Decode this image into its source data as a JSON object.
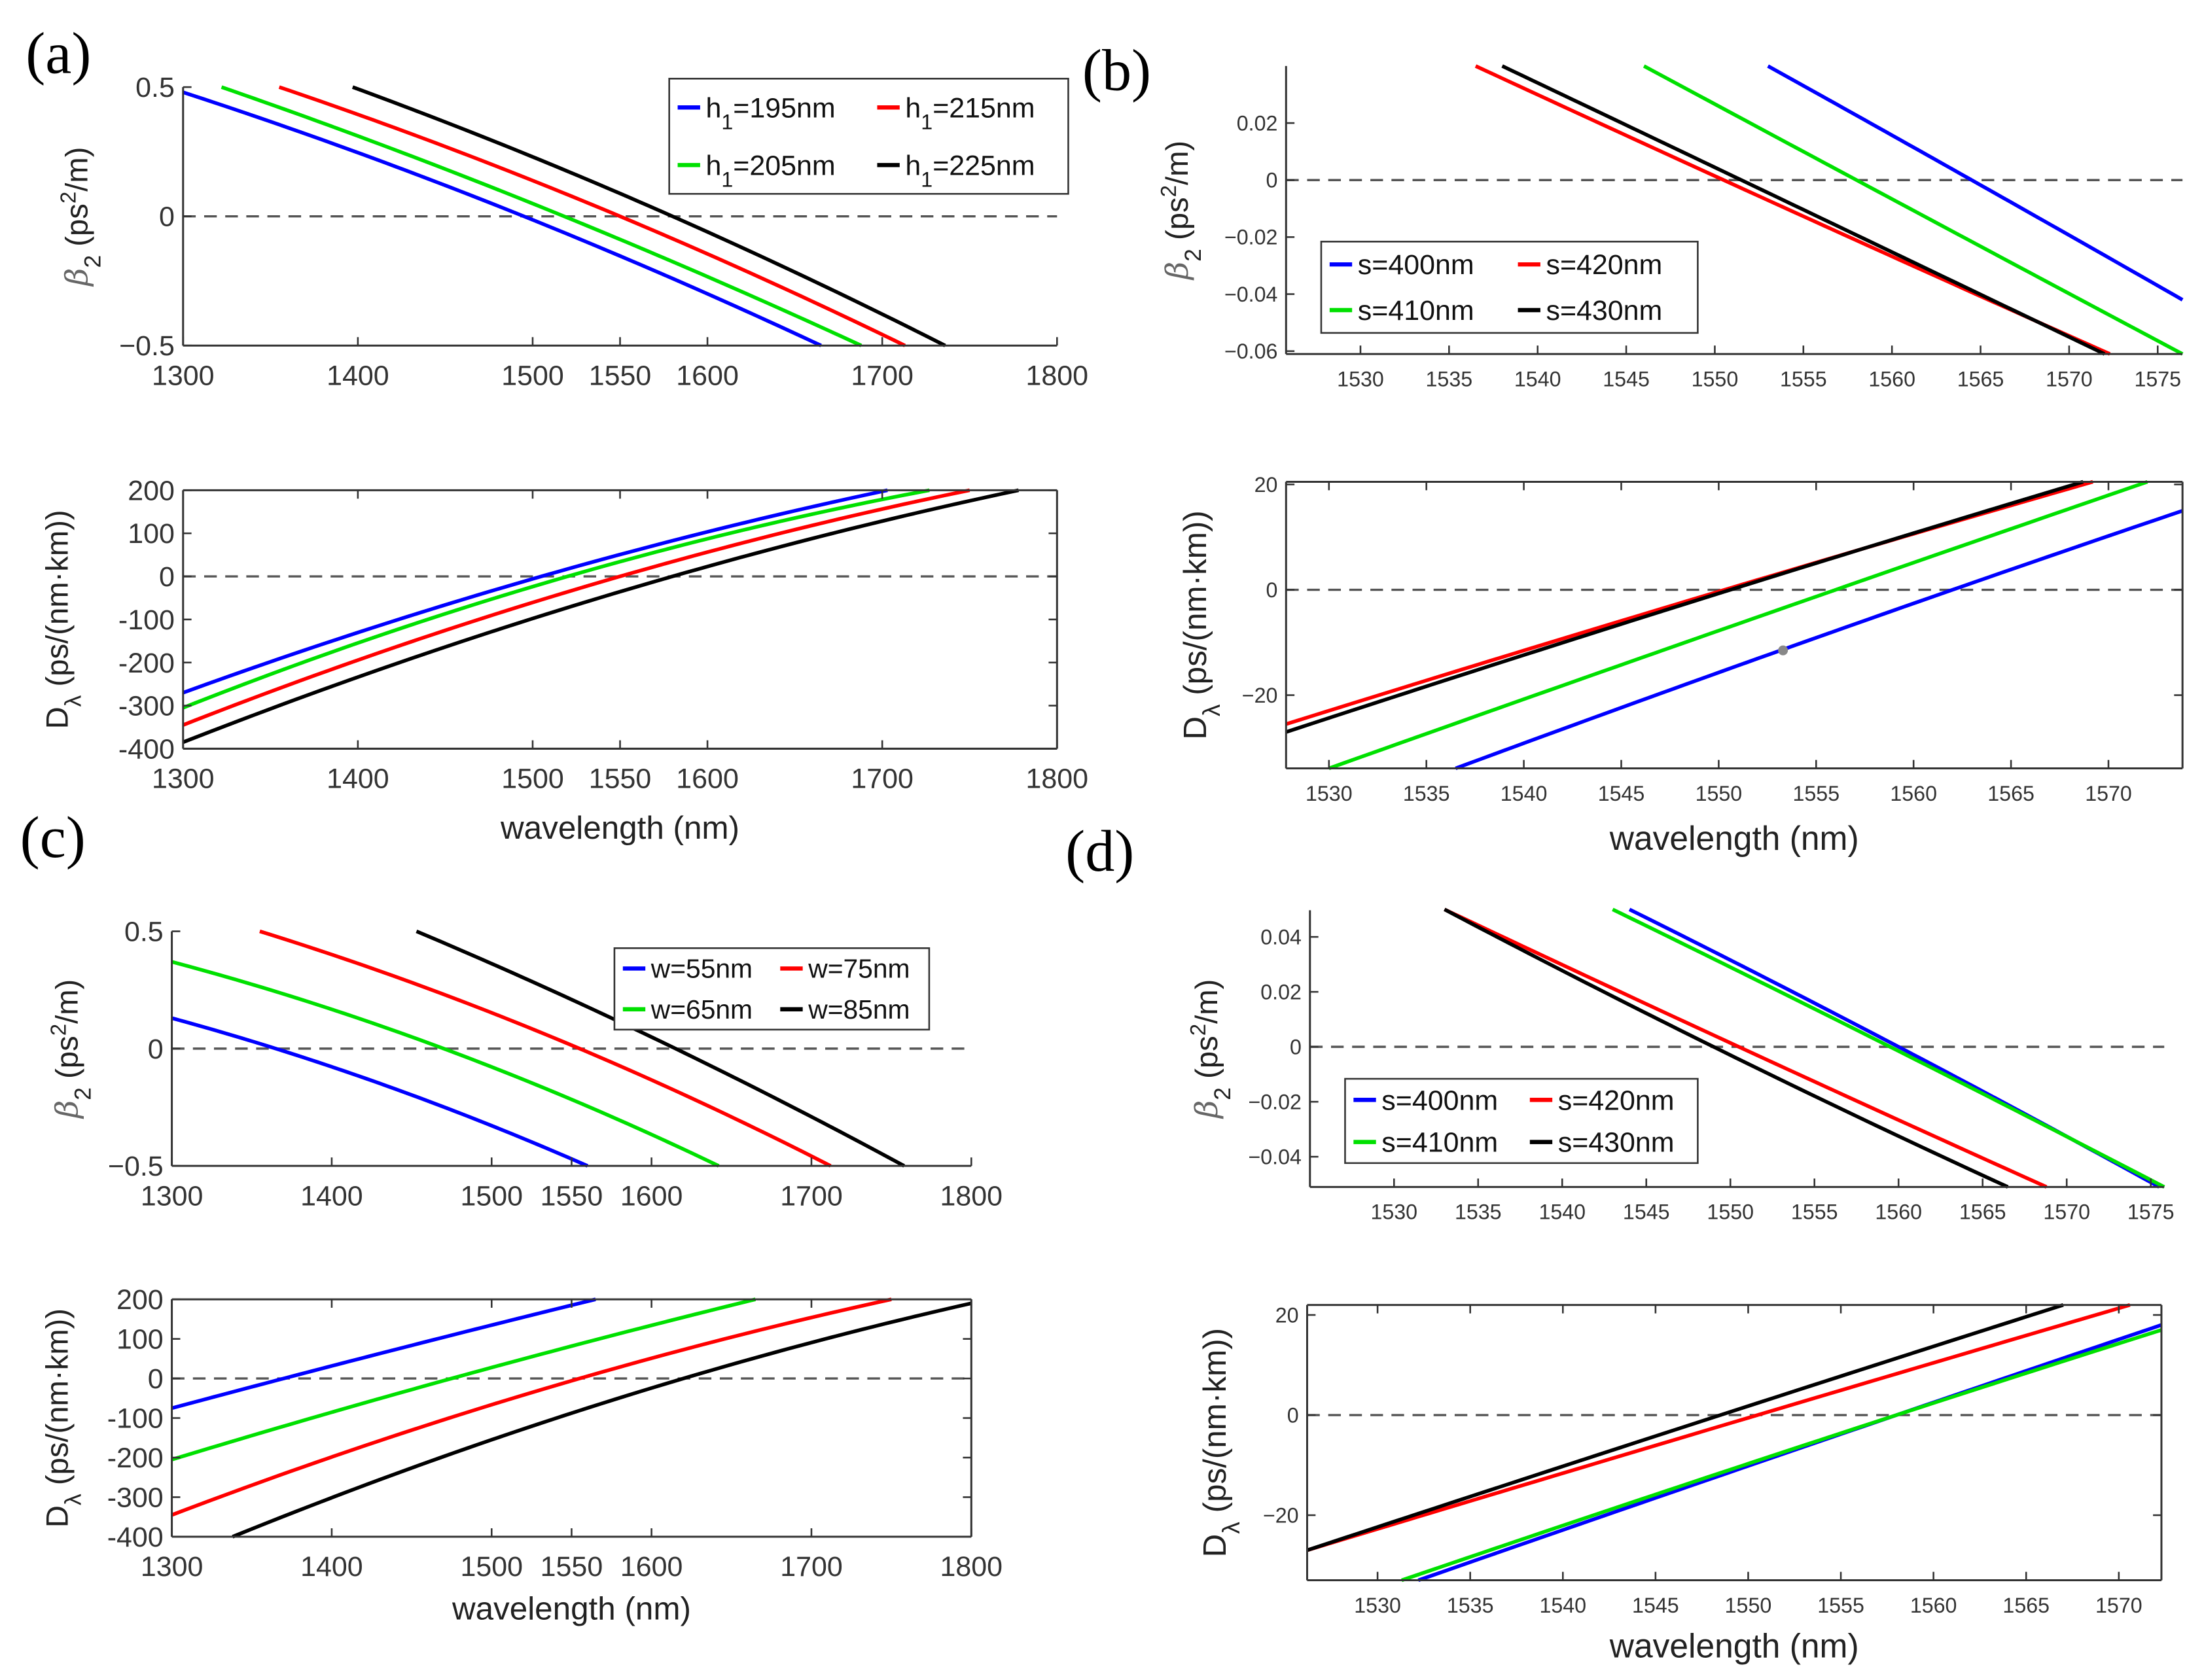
{
  "panel_labels": [
    "(a)",
    "(b)",
    "(c)",
    "(d)"
  ],
  "chart_data": [
    {
      "panel": "(a)",
      "type": "line",
      "title": "",
      "xlim": [
        1300,
        1800
      ],
      "ylim": [
        -0.5,
        0.5
      ],
      "xticks": [
        1300,
        1400,
        1500,
        1550,
        1600,
        1700,
        1800
      ],
      "yticks": [
        {
          "v": -0.5,
          "t": "−0.5"
        },
        {
          "v": 0,
          "t": "0"
        },
        {
          "v": 0.5,
          "t": "0.5"
        }
      ],
      "xlabel": "",
      "ylabel": {
        "a": "β",
        "sub": "2",
        "b": " (ps",
        "sup": "2",
        "c": "/m)"
      },
      "zero_line": true,
      "legend": true,
      "series": [
        {
          "name": {
            "a": "h",
            "sub": "1",
            "b": "=195nm"
          },
          "color": "#0000ff",
          "x": [
            1300,
            1495,
            1665
          ],
          "y": [
            0.48,
            0,
            -0.5
          ]
        },
        {
          "name": {
            "a": "h",
            "sub": "1",
            "b": "=205nm"
          },
          "color": "#00e000",
          "x": [
            1322,
            1518,
            1688
          ],
          "y": [
            0.5,
            0,
            -0.5
          ]
        },
        {
          "name": {
            "a": "h",
            "sub": "1",
            "b": "=215nm"
          },
          "color": "#ff0000",
          "x": [
            1355,
            1550,
            1713
          ],
          "y": [
            0.5,
            0,
            -0.5
          ]
        },
        {
          "name": {
            "a": "h",
            "sub": "1",
            "b": "=225nm"
          },
          "color": "#000000",
          "x": [
            1397,
            1580,
            1736
          ],
          "y": [
            0.5,
            0,
            -0.5
          ]
        }
      ]
    },
    {
      "panel": "(a)",
      "type": "line",
      "title": "",
      "xlim": [
        1300,
        1800
      ],
      "ylim": [
        -400,
        200
      ],
      "xticks": [
        1300,
        1400,
        1500,
        1550,
        1600,
        1700,
        1800
      ],
      "yticks": [
        {
          "v": -400,
          "t": "-400"
        },
        {
          "v": -300,
          "t": "-300"
        },
        {
          "v": -200,
          "t": "-200"
        },
        {
          "v": -100,
          "t": "-100"
        },
        {
          "v": 0,
          "t": "0"
        },
        {
          "v": 100,
          "t": "100"
        },
        {
          "v": 200,
          "t": "200"
        }
      ],
      "xlabel": "wavelength (nm)",
      "ylabel": {
        "a": "D",
        "sub": "λ",
        "b": " (ps/(nm·km))",
        "sup": "",
        "c": ""
      },
      "zero_line": true,
      "legend": false,
      "series": [
        {
          "name": {
            "a": "h",
            "sub": "1",
            "b": "=195nm"
          },
          "color": "#0000ff",
          "x": [
            1300,
            1505,
            1703
          ],
          "y": [
            -270,
            0,
            200
          ]
        },
        {
          "name": {
            "a": "h",
            "sub": "1",
            "b": "=205nm"
          },
          "color": "#00e000",
          "x": [
            1300,
            1520,
            1727
          ],
          "y": [
            -305,
            0,
            200
          ]
        },
        {
          "name": {
            "a": "h",
            "sub": "1",
            "b": "=215nm"
          },
          "color": "#ff0000",
          "x": [
            1300,
            1550,
            1750
          ],
          "y": [
            -345,
            0,
            200
          ]
        },
        {
          "name": {
            "a": "h",
            "sub": "1",
            "b": "=225nm"
          },
          "color": "#000000",
          "x": [
            1300,
            1580,
            1778
          ],
          "y": [
            -385,
            0,
            200
          ]
        }
      ]
    },
    {
      "panel": "(b)",
      "type": "line",
      "title": "",
      "xlim": [
        1525.8,
        1576.4
      ],
      "ylim": [
        -0.061,
        0.04
      ],
      "xticks": [
        1530,
        1535,
        1540,
        1545,
        1550,
        1555,
        1560,
        1565,
        1570,
        1575
      ],
      "yticks": [
        {
          "v": -0.06,
          "t": "−0.06"
        },
        {
          "v": -0.04,
          "t": "−0.04"
        },
        {
          "v": -0.02,
          "t": "−0.02"
        },
        {
          "v": 0,
          "t": "0"
        },
        {
          "v": 0.02,
          "t": "0.02"
        }
      ],
      "xlabel": "",
      "ylabel": {
        "a": "β",
        "sub": "2",
        "b": " (ps",
        "sup": "2",
        "c": "/m)"
      },
      "zero_line": true,
      "legend": true,
      "series": [
        {
          "name": {
            "a": "s=400nm",
            "sub": "",
            "b": ""
          },
          "color": "#0000ff",
          "x": [
            1553,
            1564.5,
            1576.4
          ],
          "y": [
            0.04,
            0,
            -0.042
          ]
        },
        {
          "name": {
            "a": "s=410nm",
            "sub": "",
            "b": ""
          },
          "color": "#00e000",
          "x": [
            1546,
            1558,
            1576.4
          ],
          "y": [
            0.04,
            0,
            -0.061
          ]
        },
        {
          "name": {
            "a": "s=420nm",
            "sub": "",
            "b": ""
          },
          "color": "#ff0000",
          "x": [
            1536.5,
            1550.5,
            1572.3
          ],
          "y": [
            0.04,
            0,
            -0.061
          ]
        },
        {
          "name": {
            "a": "s=430nm",
            "sub": "",
            "b": ""
          },
          "color": "#000000",
          "x": [
            1538,
            1551.5,
            1572
          ],
          "y": [
            0.04,
            0,
            -0.061
          ]
        }
      ]
    },
    {
      "panel": "(b)",
      "type": "line",
      "title": "",
      "xlim": [
        1527.8,
        1573.8
      ],
      "ylim": [
        -33.9,
        20.5
      ],
      "xticks": [
        1530,
        1535,
        1540,
        1545,
        1550,
        1555,
        1560,
        1565,
        1570
      ],
      "yticks": [
        {
          "v": -20,
          "t": "−20"
        },
        {
          "v": 0,
          "t": "0"
        },
        {
          "v": 20,
          "t": "20"
        }
      ],
      "xlabel": "wavelength (nm)",
      "ylabel": {
        "a": "D",
        "sub": "λ",
        "b": " (ps/(nm·km))",
        "sup": "",
        "c": ""
      },
      "zero_line": true,
      "legend": false,
      "marker": {
        "x": 1553.3,
        "y": -11.5,
        "color": "#888888"
      },
      "series": [
        {
          "name": {
            "a": "s=400nm",
            "sub": "",
            "b": ""
          },
          "color": "#0000ff",
          "x": [
            1536.5,
            1562,
            1573.8
          ],
          "y": [
            -33.9,
            0,
            15
          ]
        },
        {
          "name": {
            "a": "s=410nm",
            "sub": "",
            "b": ""
          },
          "color": "#00e000",
          "x": [
            1530,
            1556,
            1572
          ],
          "y": [
            -33.9,
            0,
            20.5
          ]
        },
        {
          "name": {
            "a": "s=420nm",
            "sub": "",
            "b": ""
          },
          "color": "#ff0000",
          "x": [
            1527.8,
            1550.3,
            1569.2
          ],
          "y": [
            -25.5,
            0,
            20.5
          ]
        },
        {
          "name": {
            "a": "s=430nm",
            "sub": "",
            "b": ""
          },
          "color": "#000000",
          "x": [
            1527.8,
            1550.6,
            1568.7
          ],
          "y": [
            -27,
            0,
            20.5
          ]
        }
      ]
    },
    {
      "panel": "(c)",
      "type": "line",
      "title": "",
      "xlim": [
        1300,
        1800
      ],
      "ylim": [
        -0.5,
        0.5
      ],
      "xticks": [
        1300,
        1400,
        1500,
        1550,
        1600,
        1700,
        1800
      ],
      "yticks": [
        {
          "v": -0.5,
          "t": "−0.5"
        },
        {
          "v": 0,
          "t": "0"
        },
        {
          "v": 0.5,
          "t": "0.5"
        }
      ],
      "xlabel": "",
      "ylabel": {
        "a": "β",
        "sub": "2",
        "b": " (ps",
        "sup": "2",
        "c": "/m)"
      },
      "zero_line": true,
      "legend": true,
      "series": [
        {
          "name": {
            "a": "w=55nm",
            "sub": "",
            "b": ""
          },
          "color": "#0000ff",
          "x": [
            1300,
            1365,
            1560
          ],
          "y": [
            0.13,
            0,
            -0.5
          ]
        },
        {
          "name": {
            "a": "w=65nm",
            "sub": "",
            "b": ""
          },
          "color": "#00e000",
          "x": [
            1300,
            1470,
            1642
          ],
          "y": [
            0.37,
            0,
            -0.5
          ]
        },
        {
          "name": {
            "a": "w=75nm",
            "sub": "",
            "b": ""
          },
          "color": "#ff0000",
          "x": [
            1355,
            1555,
            1712
          ],
          "y": [
            0.5,
            0,
            -0.5
          ]
        },
        {
          "name": {
            "a": "w=85nm",
            "sub": "",
            "b": ""
          },
          "color": "#000000",
          "x": [
            1453,
            1615,
            1758
          ],
          "y": [
            0.5,
            0,
            -0.5
          ]
        }
      ]
    },
    {
      "panel": "(c)",
      "type": "line",
      "title": "",
      "xlim": [
        1300,
        1800
      ],
      "ylim": [
        -400,
        200
      ],
      "xticks": [
        1300,
        1400,
        1500,
        1550,
        1600,
        1700,
        1800
      ],
      "yticks": [
        {
          "v": -400,
          "t": "-400"
        },
        {
          "v": -300,
          "t": "-300"
        },
        {
          "v": -200,
          "t": "-200"
        },
        {
          "v": -100,
          "t": "-100"
        },
        {
          "v": 0,
          "t": "0"
        },
        {
          "v": 100,
          "t": "100"
        },
        {
          "v": 200,
          "t": "200"
        }
      ],
      "xlabel": "wavelength (nm)",
      "ylabel": {
        "a": "D",
        "sub": "λ",
        "b": " (ps/(nm·km))",
        "sup": "",
        "c": ""
      },
      "zero_line": true,
      "legend": false,
      "series": [
        {
          "name": {
            "a": "w=55nm",
            "sub": "",
            "b": ""
          },
          "color": "#0000ff",
          "x": [
            1300,
            1370,
            1565
          ],
          "y": [
            -75,
            0,
            200
          ]
        },
        {
          "name": {
            "a": "w=65nm",
            "sub": "",
            "b": ""
          },
          "color": "#00e000",
          "x": [
            1300,
            1475,
            1665
          ],
          "y": [
            -205,
            0,
            200
          ]
        },
        {
          "name": {
            "a": "w=75nm",
            "sub": "",
            "b": ""
          },
          "color": "#ff0000",
          "x": [
            1300,
            1555,
            1750
          ],
          "y": [
            -345,
            0,
            200
          ]
        },
        {
          "name": {
            "a": "w=85nm",
            "sub": "",
            "b": ""
          },
          "color": "#000000",
          "x": [
            1338,
            1620,
            1800
          ],
          "y": [
            -400,
            0,
            190
          ]
        }
      ]
    },
    {
      "panel": "(d)",
      "type": "line",
      "title": "",
      "xlim": [
        1525,
        1575.8
      ],
      "ylim": [
        -0.051,
        0.0497
      ],
      "xticks": [
        1530,
        1535,
        1540,
        1545,
        1550,
        1555,
        1560,
        1565,
        1570,
        1575
      ],
      "yticks": [
        {
          "v": -0.04,
          "t": "−0.04"
        },
        {
          "v": -0.02,
          "t": "−0.02"
        },
        {
          "v": 0,
          "t": "0"
        },
        {
          "v": 0.02,
          "t": "0.02"
        },
        {
          "v": 0.04,
          "t": "0.04"
        }
      ],
      "xlabel": "",
      "ylabel": {
        "a": "β",
        "sub": "2",
        "b": " (ps",
        "sup": "2",
        "c": "/m)"
      },
      "zero_line": true,
      "legend": true,
      "series": [
        {
          "name": {
            "a": "s=400nm",
            "sub": "",
            "b": ""
          },
          "color": "#0000ff",
          "x": [
            1544,
            1560,
            1575.5
          ],
          "y": [
            0.05,
            0,
            -0.051
          ]
        },
        {
          "name": {
            "a": "s=410nm",
            "sub": "",
            "b": ""
          },
          "color": "#00e000",
          "x": [
            1543,
            1559.5,
            1575.8
          ],
          "y": [
            0.05,
            0,
            -0.051
          ]
        },
        {
          "name": {
            "a": "s=420nm",
            "sub": "",
            "b": ""
          },
          "color": "#ff0000",
          "x": [
            1533,
            1550.5,
            1568.8
          ],
          "y": [
            0.05,
            0,
            -0.051
          ]
        },
        {
          "name": {
            "a": "s=430nm",
            "sub": "",
            "b": ""
          },
          "color": "#000000",
          "x": [
            1533,
            1549,
            1566.5
          ],
          "y": [
            0.05,
            0,
            -0.051
          ]
        }
      ]
    },
    {
      "panel": "(d)",
      "type": "line",
      "title": "",
      "xlim": [
        1526.2,
        1572.3
      ],
      "ylim": [
        -33,
        22
      ],
      "xticks": [
        1530,
        1535,
        1540,
        1545,
        1550,
        1555,
        1560,
        1565,
        1570
      ],
      "yticks": [
        {
          "v": -20,
          "t": "−20"
        },
        {
          "v": 0,
          "t": "0"
        },
        {
          "v": 20,
          "t": "20"
        }
      ],
      "xlabel": "wavelength (nm)",
      "ylabel": {
        "a": "D",
        "sub": "λ",
        "b": " (ps/(nm·km))",
        "sup": "",
        "c": ""
      },
      "zero_line": true,
      "legend": false,
      "series": [
        {
          "name": {
            "a": "s=400nm",
            "sub": "",
            "b": ""
          },
          "color": "#0000ff",
          "x": [
            1532.2,
            1558,
            1572.3
          ],
          "y": [
            -33,
            0,
            18
          ]
        },
        {
          "name": {
            "a": "s=410nm",
            "sub": "",
            "b": ""
          },
          "color": "#00e000",
          "x": [
            1531.3,
            1558,
            1572.3
          ],
          "y": [
            -33,
            0,
            17
          ]
        },
        {
          "name": {
            "a": "s=420nm",
            "sub": "",
            "b": ""
          },
          "color": "#ff0000",
          "x": [
            1526.2,
            1550.5,
            1570.6
          ],
          "y": [
            -27,
            0,
            22
          ]
        },
        {
          "name": {
            "a": "s=430nm",
            "sub": "",
            "b": ""
          },
          "color": "#000000",
          "x": [
            1526.2,
            1548.5,
            1567
          ],
          "y": [
            -27,
            0,
            22
          ]
        }
      ]
    }
  ]
}
